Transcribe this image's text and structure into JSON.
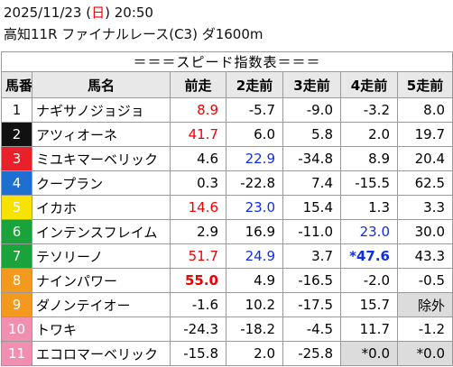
{
  "header": {
    "date": "2025/11/23",
    "weekday": "日",
    "time": "20:50",
    "race": "高知11R ファイナルレース(C3) ダ1600m"
  },
  "table": {
    "title": "＝＝＝スピード指数表＝＝＝",
    "columns": [
      "馬番",
      "馬名",
      "前走",
      "2走前",
      "3走前",
      "4走前",
      "5走前"
    ],
    "rows": [
      [
        "1",
        "ナギサノジョジョ",
        "8.9",
        "-5.7",
        "-9.0",
        "-3.2",
        "8.0"
      ],
      [
        "2",
        "アツィオーネ",
        "41.7",
        "6.0",
        "5.8",
        "2.0",
        "19.7"
      ],
      [
        "3",
        "ミユキマーベリック",
        "4.6",
        "22.9",
        "-34.8",
        "8.9",
        "20.4"
      ],
      [
        "4",
        "クープラン",
        "0.3",
        "-22.8",
        "7.4",
        "-15.5",
        "62.5"
      ],
      [
        "5",
        "イカホ",
        "14.6",
        "23.0",
        "15.4",
        "1.3",
        "3.3"
      ],
      [
        "6",
        "インテンスフレイム",
        "2.9",
        "16.9",
        "-11.0",
        "23.0",
        "30.0"
      ],
      [
        "7",
        "テソリーノ",
        "51.7",
        "24.9",
        "3.7",
        "*47.6",
        "43.3"
      ],
      [
        "8",
        "ナインパワー",
        "55.0",
        "4.9",
        "-16.5",
        "-2.0",
        "-0.5"
      ],
      [
        "9",
        "ダノンテイオー",
        "-1.6",
        "10.2",
        "-17.5",
        "15.7",
        "除外"
      ],
      [
        "10",
        "トワキ",
        "-24.3",
        "-18.2",
        "-4.5",
        "11.7",
        "-1.2"
      ],
      [
        "11",
        "エコロマーベリック",
        "-15.8",
        "2.0",
        "-25.8",
        "*0.0",
        "*0.0"
      ]
    ]
  }
}
